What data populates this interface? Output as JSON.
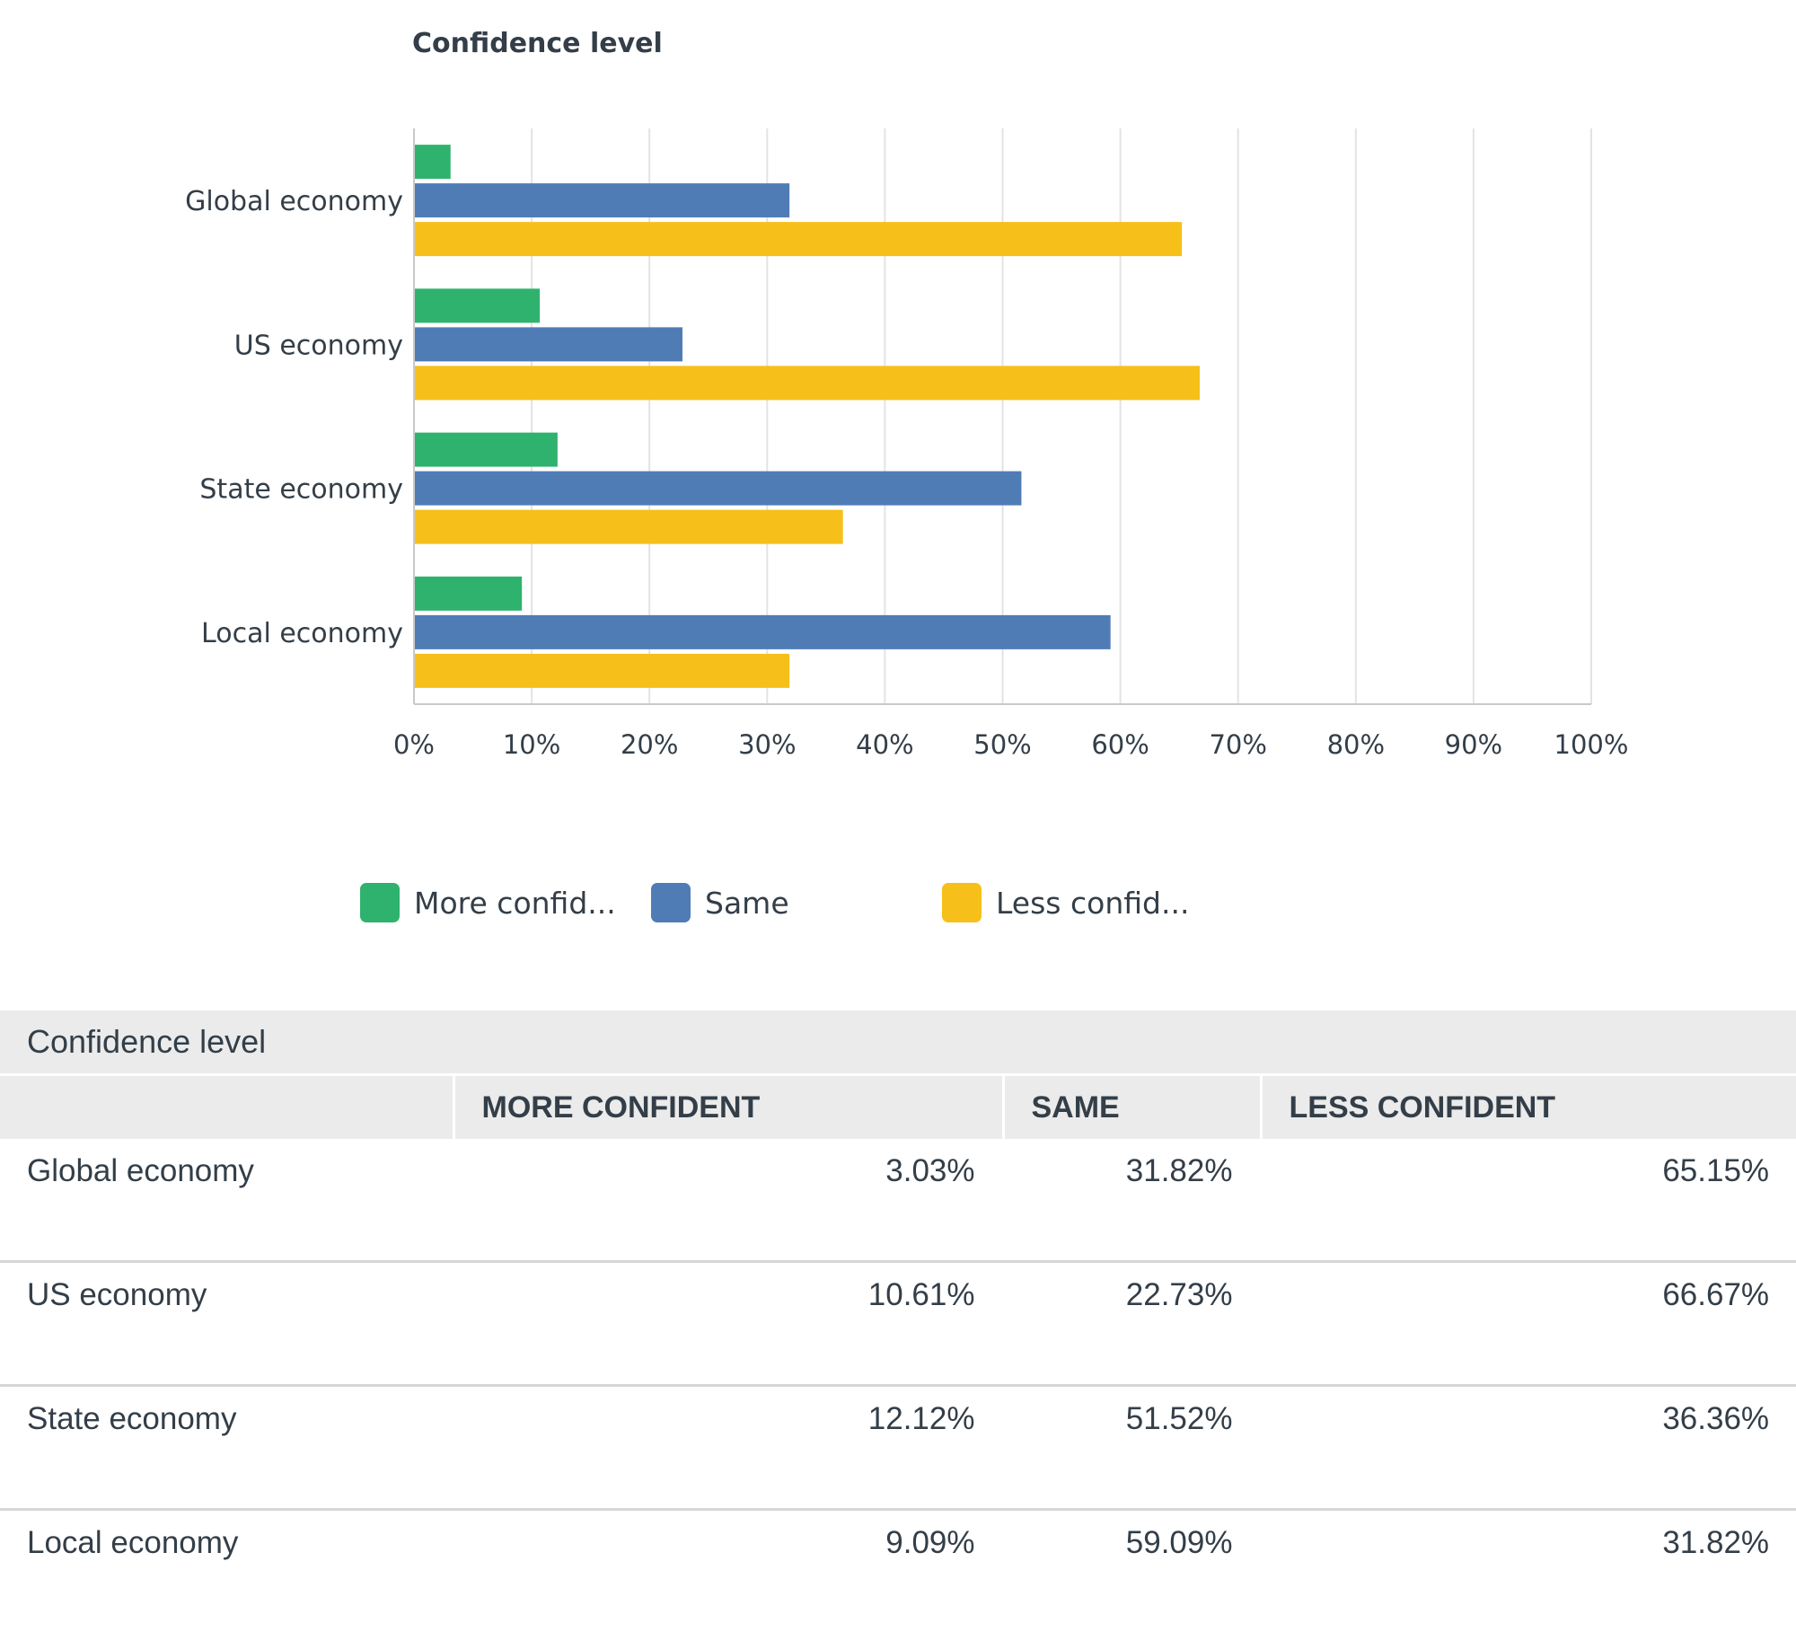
{
  "chart_data": {
    "type": "bar",
    "orientation": "horizontal",
    "title": "Confidence level",
    "categories": [
      "Global economy",
      "US economy",
      "State economy",
      "Local economy"
    ],
    "series": [
      {
        "name": "More confid...",
        "color": "#2fb26e",
        "values": [
          3.03,
          10.61,
          12.12,
          9.09
        ]
      },
      {
        "name": "Same",
        "color": "#507cb6",
        "values": [
          31.82,
          22.73,
          51.52,
          59.09
        ]
      },
      {
        "name": "Less confid...",
        "color": "#f7bf1a",
        "values": [
          65.15,
          66.67,
          36.36,
          31.82
        ]
      }
    ],
    "xlim": [
      0,
      100
    ],
    "xticks": [
      0,
      10,
      20,
      30,
      40,
      50,
      60,
      70,
      80,
      90,
      100
    ],
    "tick_labels": [
      "0%",
      "10%",
      "20%",
      "30%",
      "40%",
      "50%",
      "60%",
      "70%",
      "80%",
      "90%",
      "100%"
    ],
    "grid": true,
    "legend_position": "bottom"
  },
  "table": {
    "title": "Confidence level",
    "columns": [
      "",
      "MORE CONFIDENT",
      "SAME",
      "LESS CONFIDENT"
    ],
    "rows": [
      {
        "label": "Global economy",
        "more": "3.03%",
        "same": "31.82%",
        "less": "65.15%"
      },
      {
        "label": "US economy",
        "more": "10.61%",
        "same": "22.73%",
        "less": "66.67%"
      },
      {
        "label": "State economy",
        "more": "12.12%",
        "same": "51.52%",
        "less": "36.36%"
      },
      {
        "label": "Local economy",
        "more": "9.09%",
        "same": "59.09%",
        "less": "31.82%"
      }
    ]
  }
}
